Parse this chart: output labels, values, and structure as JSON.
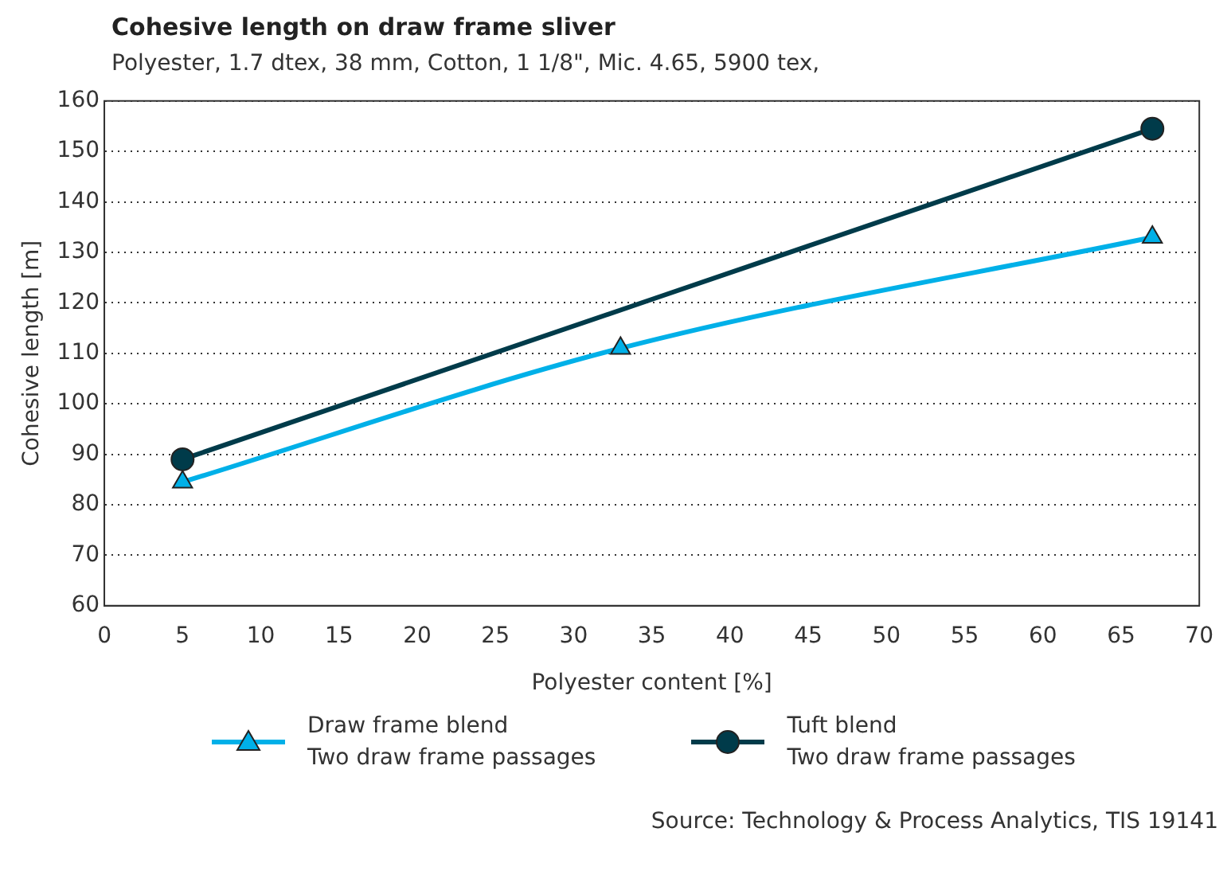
{
  "chart_data": {
    "type": "line",
    "title": "Cohesive length on draw frame sliver",
    "subtitle": "Polyester, 1.7 dtex, 38 mm, Cotton, 1 1/8\", Mic. 4.65, 5900 tex,",
    "xlabel": "Polyester content [%]",
    "ylabel": "Cohesive length [m]",
    "series": [
      {
        "name": "Draw frame blend\nTwo draw frame passages",
        "color": "#00b0e8",
        "marker": "triangle",
        "x": [
          5,
          33,
          67
        ],
        "values": [
          84.5,
          111,
          133
        ]
      },
      {
        "name": "Tuft blend\nTwo draw frame passages",
        "color": "#003b4a",
        "marker": "circle",
        "x": [
          5,
          67
        ],
        "values": [
          89,
          154.5
        ]
      }
    ],
    "xlim": [
      0,
      70
    ],
    "xticks": [
      0,
      5,
      10,
      15,
      20,
      25,
      30,
      35,
      40,
      45,
      50,
      55,
      60,
      65,
      70
    ],
    "ylim": [
      60,
      160
    ],
    "yticks": [
      60,
      70,
      80,
      90,
      100,
      110,
      120,
      130,
      140,
      150,
      160
    ],
    "grid": "y",
    "legend": "bottom",
    "annotations": [
      "Source: Technology & Process Analytics, TIS 19141"
    ]
  }
}
